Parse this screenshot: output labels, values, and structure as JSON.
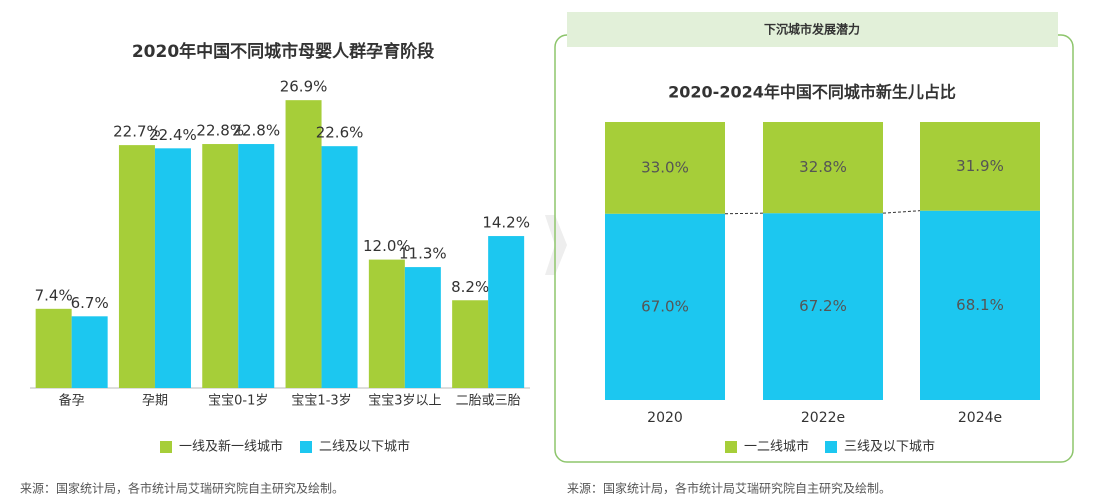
{
  "chart_data": [
    {
      "type": "bar",
      "title": "2020年中国不同城市母婴人群孕育阶段",
      "categories": [
        "备孕",
        "孕期",
        "宝宝0-1岁",
        "宝宝1-3岁",
        "宝宝3岁以上",
        "二胎或三胎"
      ],
      "series": [
        {
          "name": "一线及新一线城市",
          "color": "#a6ce39",
          "values": [
            7.4,
            22.7,
            22.8,
            26.9,
            12.0,
            8.2
          ],
          "value_labels": [
            "7.4%",
            "22.7%",
            "22.8%",
            "26.9%",
            "12.0%",
            "8.2%"
          ]
        },
        {
          "name": "二线及以下城市",
          "color": "#1cc7f0",
          "values": [
            6.7,
            22.4,
            22.8,
            22.6,
            11.3,
            14.2
          ],
          "value_labels": [
            "6.7%",
            "22.4%",
            "22.8%",
            "22.6%",
            "11.3%",
            "14.2%"
          ]
        }
      ],
      "ylim": [
        0,
        30
      ],
      "source": "来源：国家统计局，各市统计局艾瑞研究院自主研究及绘制。"
    },
    {
      "type": "stacked_bar",
      "panel_title": "下沉城市发展潜力",
      "title": "2020-2024年中国不同城市新生儿占比",
      "categories": [
        "2020",
        "2022e",
        "2024e"
      ],
      "series": [
        {
          "name": "一二线城市",
          "color": "#a6ce39",
          "values": [
            33.0,
            32.8,
            31.9
          ],
          "value_labels": [
            "33.0%",
            "32.8%",
            "31.9%"
          ]
        },
        {
          "name": "三线及以下城市",
          "color": "#1cc7f0",
          "values": [
            67.0,
            67.2,
            68.1
          ],
          "value_labels": [
            "67.0%",
            "67.2%",
            "68.1%"
          ]
        }
      ],
      "ylim": [
        0,
        100
      ],
      "source": "来源：国家统计局，各市统计局艾瑞研究院自主研究及绘制。"
    }
  ]
}
